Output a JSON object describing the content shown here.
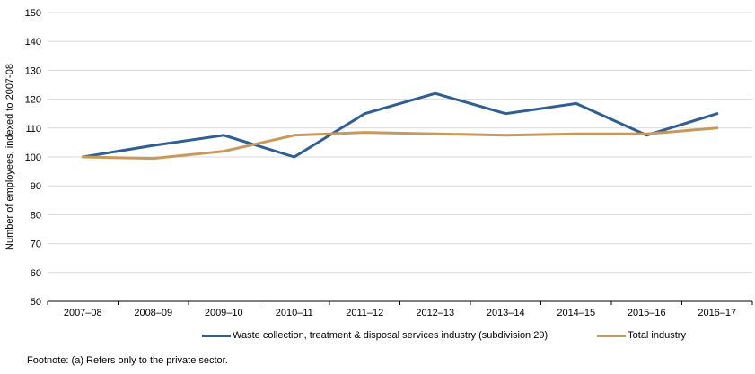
{
  "chart_data": {
    "type": "line",
    "title": "",
    "xlabel": "",
    "ylabel": "Number of employees, indexed to 2007-08",
    "ylim": [
      50,
      150
    ],
    "ytick_step": 10,
    "grid": "horizontal",
    "legend_position": "bottom",
    "categories": [
      "2007–08",
      "2008–09",
      "2009–10",
      "2010–11",
      "2011–12",
      "2012–13",
      "2013–14",
      "2014–15",
      "2015–16",
      "2016–17"
    ],
    "series": [
      {
        "name": "Waste collection, treatment & disposal services industry (subdivision 29)",
        "color": "#2F5E93",
        "values": [
          100,
          104,
          107.5,
          100,
          115,
          122,
          115,
          118.5,
          107.5,
          115
        ]
      },
      {
        "name": "Total industry",
        "color": "#C8995D",
        "values": [
          100,
          99.5,
          102,
          107.5,
          108.5,
          108,
          107.5,
          108,
          108,
          110
        ]
      }
    ]
  },
  "footnote": "Footnote: (a) Refers only to the private sector.",
  "colors": {
    "gridline": "#D9D9D9",
    "axis": "#000000",
    "tick_label": "#000000"
  }
}
